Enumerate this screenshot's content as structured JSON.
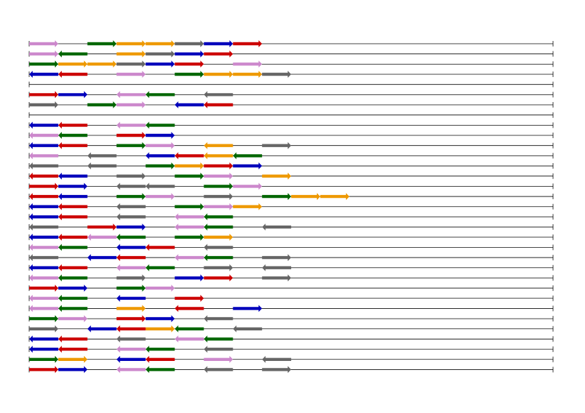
{
  "colors": {
    "red": "#cc0000",
    "blue": "#0000bb",
    "green": "#006600",
    "orange": "#ee9900",
    "gray": "#666666",
    "pink": "#cc88cc",
    "line": "#000000"
  },
  "track_span": [
    0,
    18
  ],
  "tracks": [
    {
      "genes": [
        [
          "pink",
          0,
          1,
          1
        ],
        [
          "green",
          2,
          3,
          1
        ],
        [
          "orange",
          3,
          4,
          1
        ],
        [
          "orange",
          4,
          5,
          1
        ],
        [
          "gray",
          5,
          6,
          1
        ],
        [
          "blue",
          6,
          7,
          1
        ],
        [
          "red",
          7,
          8,
          1
        ]
      ]
    },
    {
      "genes": [
        [
          "pink",
          0,
          1,
          1
        ],
        [
          "green",
          1,
          2,
          -1
        ],
        [
          "orange",
          3,
          4,
          1
        ],
        [
          "gray",
          4,
          5,
          1
        ],
        [
          "blue",
          5,
          6,
          1
        ],
        [
          "red",
          6,
          7,
          1
        ]
      ]
    },
    {
      "genes": [
        [
          "green",
          0,
          1,
          1
        ],
        [
          "orange",
          1,
          2,
          1
        ],
        [
          "orange",
          2,
          3,
          1
        ],
        [
          "gray",
          3,
          4,
          1
        ],
        [
          "blue",
          4,
          5,
          1
        ],
        [
          "red",
          5,
          6,
          1
        ],
        [
          "pink",
          7,
          8,
          1
        ]
      ]
    },
    {
      "genes": [
        [
          "blue",
          0,
          1,
          -1
        ],
        [
          "red",
          1,
          2,
          -1
        ],
        [
          "pink",
          3,
          4,
          1
        ],
        [
          "green",
          5,
          6,
          1
        ],
        [
          "orange",
          6,
          7,
          1
        ],
        [
          "orange",
          7,
          8,
          1
        ],
        [
          "gray",
          8,
          9,
          1
        ]
      ]
    },
    {
      "genes": []
    },
    {
      "genes": [
        [
          "red",
          0,
          1,
          1
        ],
        [
          "blue",
          1,
          2,
          1
        ],
        [
          "pink",
          3,
          4,
          -1
        ],
        [
          "green",
          4,
          5,
          -1
        ],
        [
          "gray",
          6,
          7,
          -1
        ]
      ]
    },
    {
      "genes": [
        [
          "gray",
          0,
          1,
          1
        ],
        [
          "green",
          2,
          3,
          1
        ],
        [
          "pink",
          3,
          4,
          1
        ],
        [
          "blue",
          5,
          6,
          -1
        ],
        [
          "red",
          6,
          7,
          -1
        ]
      ]
    },
    {
      "genes": []
    },
    {
      "genes": [
        [
          "blue",
          0,
          1,
          -1
        ],
        [
          "red",
          1,
          2,
          -1
        ],
        [
          "pink",
          3,
          4,
          -1
        ],
        [
          "green",
          4,
          5,
          -1
        ]
      ]
    },
    {
      "genes": [
        [
          "pink",
          0,
          1,
          -1
        ],
        [
          "green",
          1,
          2,
          -1
        ],
        [
          "red",
          3,
          4,
          1
        ],
        [
          "blue",
          4,
          5,
          1
        ]
      ]
    },
    {
      "genes": [
        [
          "blue",
          0,
          1,
          -1
        ],
        [
          "red",
          1,
          2,
          -1
        ],
        [
          "green",
          3,
          4,
          1
        ],
        [
          "pink",
          4,
          5,
          1
        ],
        [
          "orange",
          6,
          7,
          -1
        ],
        [
          "gray",
          8,
          9,
          1
        ]
      ]
    },
    {
      "genes": [
        [
          "pink",
          0,
          1,
          -1
        ],
        [
          "gray",
          2,
          3,
          -1
        ],
        [
          "blue",
          4,
          5,
          -1
        ],
        [
          "red",
          5,
          6,
          -1
        ],
        [
          "orange",
          6,
          7,
          -1
        ],
        [
          "green",
          7,
          8,
          -1
        ]
      ]
    },
    {
      "genes": [
        [
          "gray",
          0,
          1,
          -1
        ],
        [
          "gray",
          2,
          3,
          -1
        ],
        [
          "green",
          4,
          5,
          1
        ],
        [
          "orange",
          5,
          6,
          1
        ],
        [
          "red",
          6,
          7,
          1
        ],
        [
          "blue",
          7,
          8,
          1
        ]
      ]
    },
    {
      "genes": [
        [
          "red",
          0,
          1,
          -1
        ],
        [
          "blue",
          1,
          2,
          -1
        ],
        [
          "gray",
          3,
          4,
          1
        ],
        [
          "green",
          5,
          6,
          1
        ],
        [
          "pink",
          6,
          7,
          1
        ],
        [
          "orange",
          8,
          9,
          1
        ]
      ]
    },
    {
      "genes": [
        [
          "red",
          0,
          1,
          1
        ],
        [
          "blue",
          1,
          2,
          1
        ],
        [
          "gray",
          3,
          4,
          -1
        ],
        [
          "gray",
          4,
          5,
          -1
        ],
        [
          "green",
          6,
          7,
          1
        ],
        [
          "pink",
          7,
          8,
          1
        ]
      ]
    },
    {
      "genes": [
        [
          "red",
          0,
          1,
          -1
        ],
        [
          "blue",
          1,
          2,
          -1
        ],
        [
          "green",
          3,
          4,
          1
        ],
        [
          "pink",
          4,
          5,
          1
        ],
        [
          "gray",
          6,
          7,
          1
        ],
        [
          "green",
          8,
          9,
          1
        ],
        [
          "orange",
          9,
          10,
          1
        ],
        [
          "orange",
          10,
          11,
          1
        ]
      ]
    },
    {
      "genes": [
        [
          "blue",
          0,
          1,
          -1
        ],
        [
          "red",
          1,
          2,
          -1
        ],
        [
          "gray",
          3,
          4,
          -1
        ],
        [
          "green",
          5,
          6,
          1
        ],
        [
          "pink",
          6,
          7,
          1
        ],
        [
          "orange",
          7,
          8,
          1
        ]
      ]
    },
    {
      "genes": [
        [
          "blue",
          0,
          1,
          -1
        ],
        [
          "red",
          1,
          2,
          -1
        ],
        [
          "gray",
          3,
          4,
          -1
        ],
        [
          "pink",
          5,
          6,
          -1
        ],
        [
          "green",
          6,
          7,
          -1
        ]
      ]
    },
    {
      "genes": [
        [
          "gray",
          0,
          1,
          -1
        ],
        [
          "red",
          2,
          3,
          1
        ],
        [
          "blue",
          3,
          4,
          1
        ],
        [
          "pink",
          5,
          6,
          -1
        ],
        [
          "green",
          6,
          7,
          -1
        ],
        [
          "gray",
          8,
          9,
          -1
        ]
      ]
    },
    {
      "genes": [
        [
          "blue",
          0,
          1,
          -1
        ],
        [
          "red",
          1,
          2,
          -1
        ],
        [
          "pink",
          2,
          3,
          -1
        ],
        [
          "green",
          3,
          4,
          -1
        ],
        [
          "green",
          5,
          6,
          1
        ],
        [
          "orange",
          6,
          7,
          1
        ]
      ]
    },
    {
      "genes": [
        [
          "pink",
          0,
          1,
          -1
        ],
        [
          "green",
          1,
          2,
          -1
        ],
        [
          "blue",
          3,
          4,
          -1
        ],
        [
          "red",
          4,
          5,
          -1
        ],
        [
          "gray",
          6,
          7,
          -1
        ]
      ]
    },
    {
      "genes": [
        [
          "gray",
          0,
          1,
          -1
        ],
        [
          "blue",
          2,
          3,
          -1
        ],
        [
          "red",
          3,
          4,
          -1
        ],
        [
          "pink",
          5,
          6,
          -1
        ],
        [
          "green",
          6,
          7,
          -1
        ],
        [
          "gray",
          8,
          9,
          1
        ]
      ]
    },
    {
      "genes": [
        [
          "blue",
          0,
          1,
          -1
        ],
        [
          "red",
          1,
          2,
          -1
        ],
        [
          "pink",
          3,
          4,
          -1
        ],
        [
          "green",
          4,
          5,
          -1
        ],
        [
          "gray",
          6,
          7,
          1
        ],
        [
          "gray",
          8,
          9,
          -1
        ]
      ]
    },
    {
      "genes": [
        [
          "pink",
          0,
          1,
          -1
        ],
        [
          "green",
          1,
          2,
          -1
        ],
        [
          "gray",
          3,
          4,
          1
        ],
        [
          "blue",
          5,
          6,
          1
        ],
        [
          "red",
          6,
          7,
          1
        ],
        [
          "gray",
          8,
          9,
          1
        ]
      ]
    },
    {
      "genes": [
        [
          "red",
          0,
          1,
          1
        ],
        [
          "blue",
          1,
          2,
          1
        ],
        [
          "green",
          3,
          4,
          1
        ],
        [
          "pink",
          4,
          5,
          1
        ]
      ]
    },
    {
      "genes": [
        [
          "pink",
          0,
          1,
          -1
        ],
        [
          "green",
          1,
          2,
          -1
        ],
        [
          "blue",
          3,
          4,
          -1
        ],
        [
          "red",
          5,
          6,
          1
        ]
      ]
    },
    {
      "genes": [
        [
          "pink",
          0,
          1,
          -1
        ],
        [
          "green",
          1,
          2,
          -1
        ],
        [
          "orange",
          3,
          4,
          1
        ],
        [
          "red",
          5,
          6,
          -1
        ],
        [
          "blue",
          7,
          8,
          1
        ]
      ]
    },
    {
      "genes": [
        [
          "green",
          0,
          1,
          1
        ],
        [
          "pink",
          1,
          2,
          1
        ],
        [
          "red",
          3,
          4,
          1
        ],
        [
          "blue",
          4,
          5,
          1
        ],
        [
          "gray",
          6,
          7,
          -1
        ]
      ]
    },
    {
      "genes": [
        [
          "gray",
          0,
          1,
          1
        ],
        [
          "blue",
          2,
          3,
          -1
        ],
        [
          "red",
          3,
          4,
          -1
        ],
        [
          "orange",
          4,
          5,
          1
        ],
        [
          "green",
          5,
          6,
          -1
        ],
        [
          "gray",
          7,
          8,
          -1
        ]
      ]
    },
    {
      "genes": [
        [
          "blue",
          0,
          1,
          -1
        ],
        [
          "red",
          1,
          2,
          -1
        ],
        [
          "gray",
          3,
          4,
          -1
        ],
        [
          "pink",
          5,
          6,
          -1
        ],
        [
          "green",
          6,
          7,
          -1
        ]
      ]
    },
    {
      "genes": [
        [
          "blue",
          0,
          1,
          -1
        ],
        [
          "red",
          1,
          2,
          -1
        ],
        [
          "pink",
          3,
          4,
          -1
        ],
        [
          "green",
          4,
          5,
          -1
        ],
        [
          "gray",
          6,
          7,
          -1
        ]
      ]
    },
    {
      "genes": [
        [
          "green",
          0,
          1,
          1
        ],
        [
          "orange",
          1,
          2,
          1
        ],
        [
          "blue",
          3,
          4,
          -1
        ],
        [
          "red",
          4,
          5,
          -1
        ],
        [
          "pink",
          6,
          7,
          1
        ],
        [
          "gray",
          8,
          9,
          -1
        ]
      ]
    },
    {
      "genes": [
        [
          "red",
          0,
          1,
          1
        ],
        [
          "blue",
          1,
          2,
          1
        ],
        [
          "pink",
          3,
          4,
          -1
        ],
        [
          "green",
          4,
          5,
          -1
        ],
        [
          "gray",
          6,
          7,
          -1
        ],
        [
          "gray",
          8,
          9,
          1
        ]
      ]
    }
  ]
}
